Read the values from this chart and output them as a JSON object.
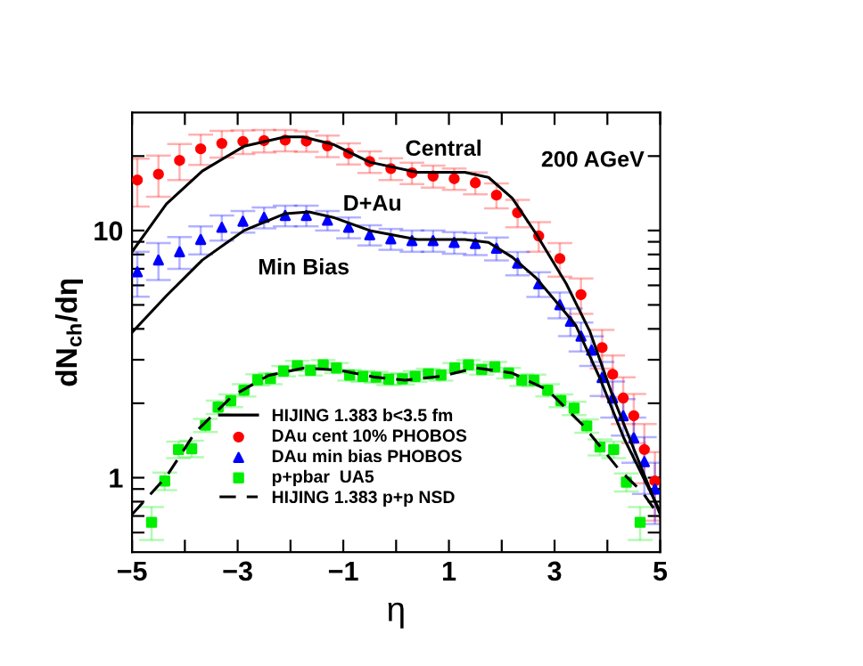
{
  "chart_data": {
    "type": "scatter",
    "xlabel": "η",
    "ylabel": "dN$_{ch}$/dη",
    "log": "y",
    "xlim": [
      -5,
      5
    ],
    "ylim": [
      0.5,
      30
    ],
    "xticks": [
      {
        "value": -5,
        "label": "−5"
      },
      {
        "value": -4,
        "label": null
      },
      {
        "value": -3,
        "label": "−3"
      },
      {
        "value": -2,
        "label": null
      },
      {
        "value": -1,
        "label": "−1"
      },
      {
        "value": 0,
        "label": null
      },
      1,
      {
        "value": 2,
        "label": null
      },
      3,
      {
        "value": 4,
        "label": null
      },
      5
    ],
    "yticks": [
      {
        "value": 0.6,
        "label": null
      },
      {
        "value": 0.7,
        "label": null
      },
      {
        "value": 0.8,
        "label": null
      },
      {
        "value": 0.9,
        "label": null
      },
      1,
      {
        "value": 2,
        "label": null
      },
      {
        "value": 3,
        "label": null
      },
      {
        "value": 4,
        "label": null
      },
      {
        "value": 5,
        "label": null
      },
      {
        "value": 6,
        "label": null
      },
      {
        "value": 7,
        "label": null
      },
      {
        "value": 8,
        "label": null
      },
      {
        "value": 9,
        "label": null
      },
      10,
      {
        "value": 20,
        "label": null
      }
    ],
    "grid": false,
    "legend": "bottom",
    "annotations": [
      "Central",
      "D+Au",
      "Min Bias",
      "200 AGeV"
    ],
    "series": [
      {
        "name": "HIJING 1.383 b<3.5 fm",
        "type": "line",
        "color": "#000000",
        "line_style": "solid",
        "marker": "none",
        "x": [
          -5,
          -4.35,
          -3.67,
          -2.88,
          -2.1,
          -1.76,
          -1.19,
          -0.5,
          0.4,
          1.3,
          1.75,
          2.2,
          2.65,
          3.22,
          3.67,
          4.1,
          4.55,
          5
        ],
        "values": [
          8.2,
          12.8,
          17.4,
          21.9,
          23.9,
          23.9,
          22.3,
          18.9,
          17.2,
          17.2,
          16.4,
          13.5,
          9.7,
          6.1,
          3.9,
          2.14,
          1.23,
          0.71
        ]
      },
      {
        "type": "line",
        "color": "#000000",
        "line_style": "solid",
        "marker": "none",
        "x": [
          -5,
          -4.35,
          -3.67,
          -2.88,
          -2.1,
          -1.65,
          -1.19,
          -0.5,
          0.4,
          1.3,
          1.75,
          2.2,
          2.65,
          3.22,
          3.4,
          3.86,
          4.31,
          5
        ],
        "values": [
          3.87,
          5.44,
          7.59,
          10.0,
          11.7,
          11.9,
          11.3,
          10.0,
          9.2,
          9.2,
          8.95,
          7.8,
          6.43,
          4.61,
          4.14,
          2.52,
          1.45,
          0.73
        ]
      },
      {
        "name": "DAu cent 10% PHOBOS",
        "color": "#ff0000",
        "marker": "circle",
        "x": [
          -4.9,
          -4.5,
          -4.1,
          -3.7,
          -3.3,
          -2.9,
          -2.5,
          -2.1,
          -1.7,
          -1.3,
          -0.9,
          -0.5,
          -0.1,
          0.3,
          0.7,
          1.1,
          1.5,
          1.9,
          2.3,
          2.7,
          3.1,
          3.5,
          3.9,
          4.1,
          4.3,
          4.5,
          4.7,
          4.9
        ],
        "values": [
          16.0,
          16.9,
          19.2,
          21.4,
          22.5,
          22.9,
          23.1,
          23.2,
          23.0,
          22.0,
          20.5,
          19.0,
          17.8,
          17.1,
          16.6,
          16.2,
          15.6,
          13.9,
          11.8,
          9.5,
          7.7,
          5.5,
          3.36,
          2.62,
          2.1,
          1.78,
          1.3,
          0.97
        ],
        "errors": [
          3.5,
          3.2,
          3.2,
          3.0,
          2.8,
          2.5,
          2.4,
          2.3,
          2.2,
          2.2,
          2.0,
          1.9,
          1.8,
          1.7,
          1.7,
          1.6,
          1.6,
          1.6,
          1.5,
          1.3,
          1.2,
          0.9,
          0.6,
          0.5,
          0.45,
          0.4,
          0.35,
          0.3
        ]
      },
      {
        "name": "DAu min bias PHOBOS",
        "color": "#0000ff",
        "marker": "triangle",
        "x": [
          -4.9,
          -4.5,
          -4.1,
          -3.7,
          -3.3,
          -2.9,
          -2.5,
          -2.1,
          -1.7,
          -1.3,
          -0.9,
          -0.5,
          -0.1,
          0.3,
          0.7,
          1.1,
          1.5,
          1.9,
          2.3,
          2.7,
          3.1,
          3.3,
          3.5,
          3.7,
          3.9,
          4.1,
          4.3,
          4.5,
          4.7,
          4.9
        ],
        "values": [
          6.8,
          7.6,
          8.2,
          9.2,
          10.3,
          10.9,
          11.3,
          11.5,
          11.5,
          11.0,
          10.3,
          9.6,
          9.25,
          9.1,
          9.1,
          8.95,
          8.86,
          8.47,
          7.38,
          6.08,
          5.01,
          4.29,
          3.74,
          3.28,
          2.54,
          2.1,
          1.78,
          1.45,
          1.16,
          0.9
        ],
        "errors": [
          1.4,
          1.3,
          1.2,
          1.2,
          1.2,
          1.1,
          1.1,
          1.1,
          1.1,
          1.0,
          1.0,
          0.9,
          0.9,
          0.9,
          0.9,
          0.9,
          0.9,
          0.9,
          0.8,
          0.7,
          0.6,
          0.55,
          0.5,
          0.45,
          0.4,
          0.35,
          0.3,
          0.3,
          0.3,
          0.25
        ]
      },
      {
        "name": "p+pbar  UA5",
        "color": "#00ee00",
        "marker": "square",
        "x": [
          -4.63,
          -4.38,
          -4.12,
          -3.87,
          -3.61,
          -3.37,
          -3.13,
          -2.88,
          -2.62,
          -2.38,
          -2.13,
          -1.87,
          -1.62,
          -1.38,
          -1.13,
          -0.88,
          -0.63,
          -0.38,
          -0.14,
          0.12,
          0.36,
          0.61,
          0.85,
          1.11,
          1.37,
          1.62,
          1.87,
          2.13,
          2.38,
          2.61,
          2.87,
          3.12,
          3.37,
          3.61,
          3.86,
          4.12,
          4.36,
          4.62
        ],
        "values": [
          0.66,
          0.97,
          1.3,
          1.31,
          1.63,
          1.93,
          2.05,
          2.26,
          2.49,
          2.52,
          2.7,
          2.84,
          2.72,
          2.86,
          2.78,
          2.6,
          2.57,
          2.55,
          2.5,
          2.51,
          2.57,
          2.63,
          2.6,
          2.78,
          2.86,
          2.74,
          2.81,
          2.65,
          2.48,
          2.48,
          2.26,
          2.05,
          1.91,
          1.62,
          1.33,
          1.3,
          0.96,
          0.66
        ],
        "errors": [
          0.1,
          0.08,
          0.1,
          0.1,
          0.1,
          0.12,
          0.12,
          0.13,
          0.13,
          0.13,
          0.13,
          0.13,
          0.13,
          0.13,
          0.13,
          0.13,
          0.13,
          0.13,
          0.13,
          0.13,
          0.13,
          0.13,
          0.13,
          0.13,
          0.13,
          0.13,
          0.13,
          0.13,
          0.13,
          0.13,
          0.13,
          0.12,
          0.12,
          0.1,
          0.1,
          0.1,
          0.08,
          0.1
        ]
      },
      {
        "name": "HIJING 1.383 p+p NSD",
        "type": "line",
        "color": "#000000",
        "line_style": "dashed",
        "marker": "none",
        "x": [
          -5,
          -4.35,
          -3.8,
          -3.1,
          -2.42,
          -1.74,
          -1.07,
          -0.4,
          0.17,
          0.84,
          1.52,
          2.2,
          2.87,
          3.55,
          4.22,
          4.67,
          5
        ],
        "values": [
          0.71,
          1.01,
          1.53,
          2.14,
          2.59,
          2.78,
          2.72,
          2.55,
          2.48,
          2.57,
          2.78,
          2.65,
          2.26,
          1.62,
          1.08,
          0.87,
          0.69
        ]
      }
    ]
  }
}
